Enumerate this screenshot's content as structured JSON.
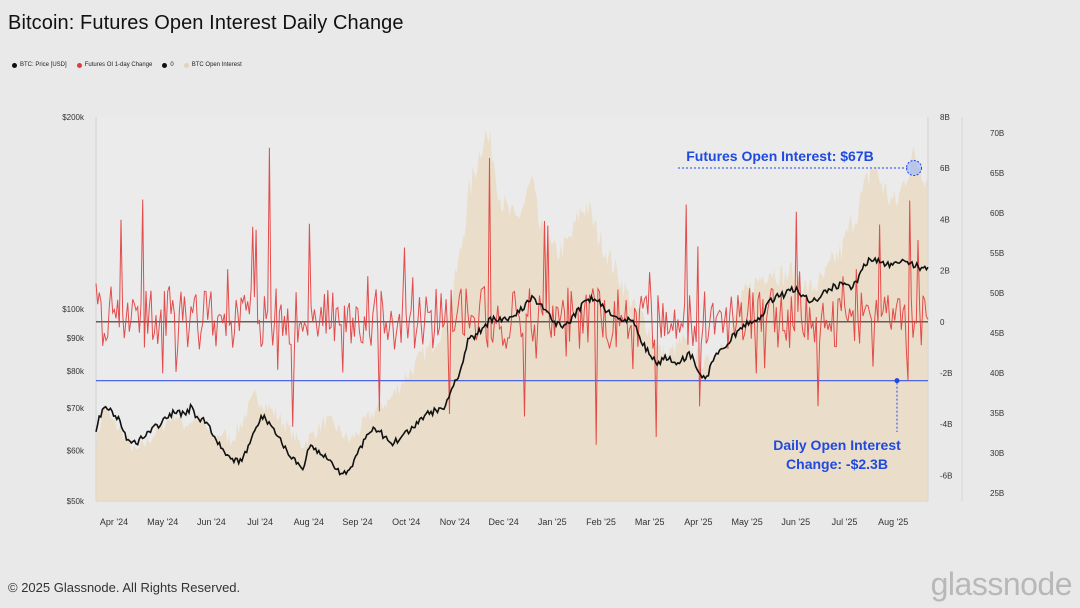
{
  "title": "Bitcoin: Futures Open Interest Daily Change",
  "legend": [
    {
      "label": "BTC: Price [USD]",
      "color": "#111111"
    },
    {
      "label": "Futures OI 1-day Change",
      "color": "#e03c3c"
    },
    {
      "label": "0",
      "color": "#111111"
    },
    {
      "label": "BTC Open Interest",
      "color": "#e3d3b8"
    }
  ],
  "footer": "© 2025 Glassnode. All Rights Reserved.",
  "brand": "glassnode",
  "colors": {
    "price": "#111111",
    "oi_change": "#e23b3b",
    "open_interest": "#ead9bf",
    "zero_line": "#333333",
    "threshold_line": "#3a56e8",
    "annotation": "#1f49e0"
  },
  "chart_data": {
    "type": "line",
    "title": "Bitcoin: Futures Open Interest Daily Change",
    "x_tick_labels": [
      "Apr '24",
      "May '24",
      "Jun '24",
      "Jul '24",
      "Aug '24",
      "Sep '24",
      "Oct '24",
      "Nov '24",
      "Dec '24",
      "Jan '25",
      "Feb '25",
      "Mar '25",
      "Apr '25",
      "May '25",
      "Jun '25",
      "Jul '25",
      "Aug '25"
    ],
    "left_axis": {
      "scale": "log",
      "range": [
        50000,
        200000
      ],
      "ticks": [
        50000,
        60000,
        70000,
        80000,
        90000,
        100000,
        200000
      ],
      "tick_labels": [
        "$50k",
        "$60k",
        "$70k",
        "$80k",
        "$90k",
        "$100k",
        "$200k"
      ]
    },
    "right_axis_1": {
      "range": [
        -7000000000,
        8000000000
      ],
      "ticks": [
        -6000000000,
        -4000000000,
        -2000000000,
        0,
        2000000000,
        4000000000,
        6000000000,
        8000000000
      ],
      "tick_labels": [
        "-6B",
        "-4B",
        "-2B",
        "0",
        "2B",
        "4B",
        "6B",
        "8B"
      ]
    },
    "right_axis_2": {
      "range": [
        24000000000,
        72000000000
      ],
      "ticks": [
        25000000000,
        30000000000,
        35000000000,
        40000000000,
        45000000000,
        50000000000,
        55000000000,
        60000000000,
        65000000000,
        70000000000
      ],
      "tick_labels": [
        "25B",
        "30B",
        "35B",
        "40B",
        "45B",
        "50B",
        "55B",
        "60B",
        "65B",
        "70B"
      ]
    },
    "series": [
      {
        "name": "BTC: Price [USD]",
        "axis": "left",
        "weekly_values": [
          65000,
          70500,
          69000,
          67000,
          62000,
          61500,
          63500,
          64500,
          66000,
          67500,
          69000,
          68500,
          70000,
          67000,
          66500,
          63000,
          60500,
          58000,
          57500,
          59500,
          64000,
          68000,
          66000,
          63000,
          60500,
          58000,
          55500,
          61000,
          59500,
          58500,
          57000,
          55000,
          56000,
          59000,
          63000,
          65500,
          64000,
          61500,
          62000,
          63500,
          65000,
          67500,
          68500,
          69500,
          70000,
          76000,
          80000,
          89500,
          91000,
          94000,
          96500,
          97000,
          96000,
          98500,
          101000,
          104000,
          101000,
          99500,
          95000,
          94000,
          96000,
          100000,
          103500,
          104000,
          101000,
          98000,
          97000,
          96000,
          95000,
          88000,
          85000,
          82000,
          84000,
          82500,
          83500,
          85000,
          80000,
          77000,
          84500,
          86000,
          89500,
          92000,
          94500,
          96000,
          97000,
          103000,
          104500,
          105500,
          107500,
          106000,
          103500,
          104000,
          106500,
          108500,
          109000,
          108000,
          110000,
          118000,
          119500,
          118500,
          117000,
          118500,
          119000,
          117500,
          116000,
          115500
        ]
      },
      {
        "name": "Futures OI 1-day Change",
        "axis": "right_1",
        "peak_max": 6800000000,
        "trough_min": -4800000000
      },
      {
        "name": "BTC Open Interest",
        "axis": "right_2",
        "weekly_values": [
          31000,
          36000,
          34000,
          33000,
          31500,
          30000,
          31000,
          32000,
          33000,
          34000,
          35000,
          33500,
          34000,
          34500,
          33000,
          32000,
          32500,
          31500,
          33000,
          35000,
          37000,
          36500,
          35500,
          34500,
          33500,
          32000,
          31000,
          32000,
          33000,
          34000,
          33500,
          32500,
          31500,
          32500,
          34000,
          35000,
          36000,
          36500,
          38000,
          39500,
          40500,
          42000,
          43000,
          44500,
          46000,
          50000,
          55000,
          62000,
          66000,
          70000,
          68000,
          62000,
          60000,
          59000,
          61000,
          64000,
          58000,
          56000,
          55000,
          55500,
          57000,
          60000,
          61000,
          58000,
          56000,
          54000,
          52000,
          50000,
          48000,
          47000,
          45000,
          43000,
          42000,
          43000,
          44000,
          43000,
          42000,
          41000,
          42000,
          44000,
          45000,
          48000,
          50000,
          51000,
          52000,
          53000,
          52500,
          52000,
          53000,
          51000,
          50500,
          51000,
          52000,
          54000,
          55000,
          58000,
          60000,
          63000,
          66000,
          64000,
          62000,
          61000,
          64000,
          67000,
          66000,
          64000
        ]
      }
    ],
    "reference_lines": [
      {
        "name": "0",
        "axis": "right_1",
        "value": 0
      },
      {
        "name": "Daily Open Interest Change threshold",
        "axis": "right_1",
        "value": -2300000000
      }
    ],
    "annotations": {
      "top_label": "Futures Open Interest: $67B",
      "bottom_line1": "Daily Open Interest",
      "bottom_line2": "Change: -$2.3B"
    }
  }
}
